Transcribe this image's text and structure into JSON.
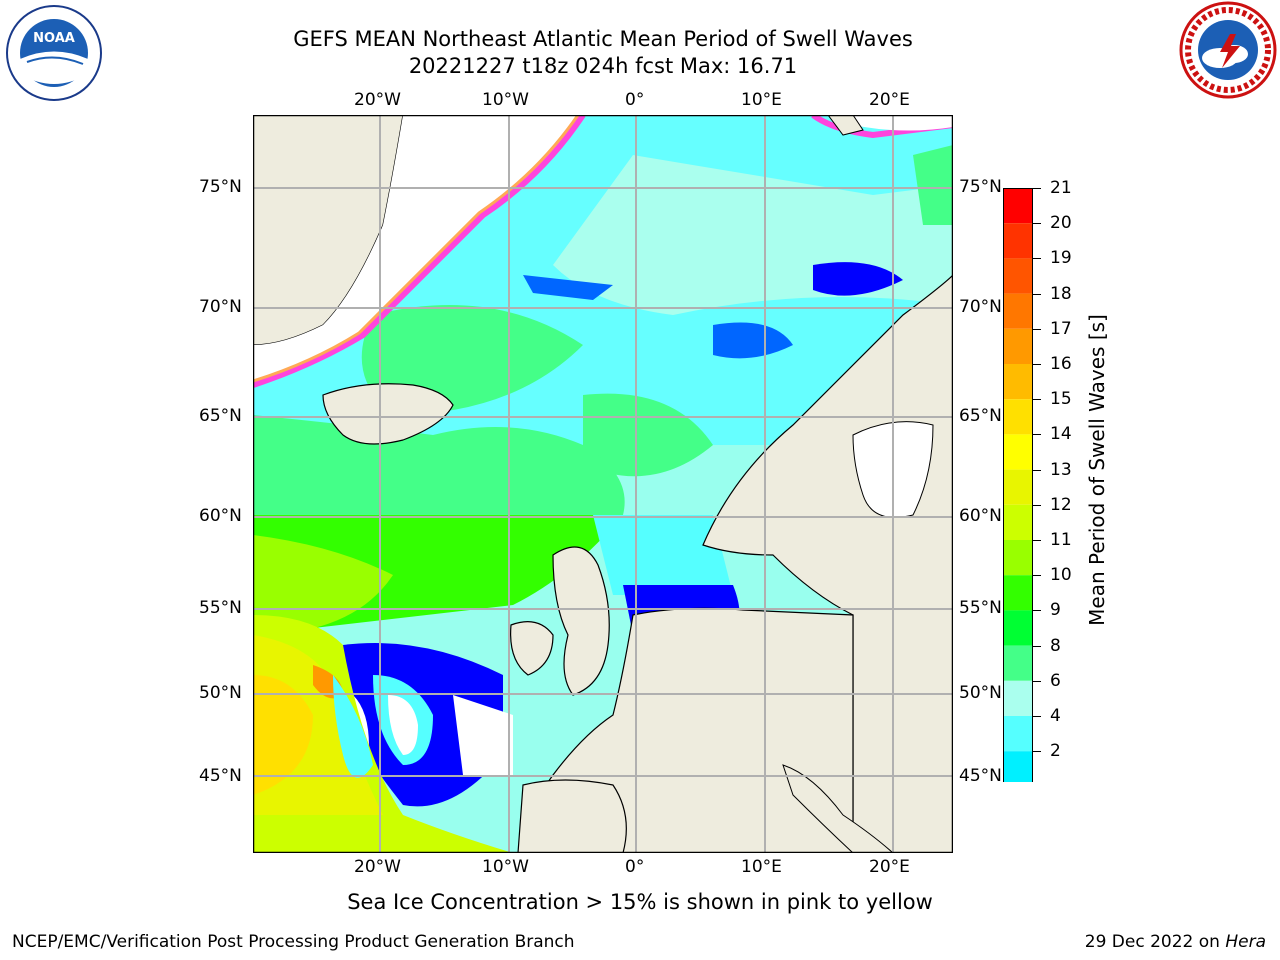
{
  "title": {
    "line1": "GEFS MEAN Northeast Atlantic Mean Period of Swell Waves",
    "line2": "20221227 t18z 024h fcst   Max: 16.71"
  },
  "logos": {
    "left": {
      "name": "noaa-logo",
      "text": "NOAA"
    },
    "right": {
      "name": "nws-logo",
      "text": "NATIONAL WEATHER SERVICE"
    }
  },
  "map": {
    "lon_labels": [
      "20°W",
      "10°W",
      "0°",
      "10°E",
      "20°E"
    ],
    "lat_labels": [
      "75°N",
      "70°N",
      "65°N",
      "60°N",
      "55°N",
      "50°N",
      "45°N"
    ],
    "colors": {
      "land": "#eeecde",
      "grid": "#b0b0b0",
      "ice_pink": "#ff44dd",
      "ice_orange": "#ffaa55"
    }
  },
  "colorbar": {
    "title": "Mean Period of Swell Waves [s]",
    "ticks": [
      "21",
      "20",
      "19",
      "18",
      "17",
      "16",
      "15",
      "14",
      "13",
      "12",
      "11",
      "10",
      "9",
      "8",
      "6",
      "4",
      "2"
    ],
    "colors": [
      "#ff0000",
      "#ff3300",
      "#ff5500",
      "#ff7700",
      "#ff9900",
      "#ffbb00",
      "#ffe000",
      "#ffff00",
      "#e8f500",
      "#ccff00",
      "#99ff00",
      "#33ff00",
      "#00ff33",
      "#44ff88",
      "#aaffee",
      "#55ffff",
      "#00f0ff",
      "#00bbff",
      "#0066ff",
      "#0000ff"
    ]
  },
  "caption": "Sea Ice Concentration > 15% is shown in pink to yellow",
  "footer": {
    "left": "NCEP/EMC/Verification Post Processing Product Generation Branch",
    "right_prefix": "29 Dec 2022 on ",
    "right_italic": "Hera"
  }
}
